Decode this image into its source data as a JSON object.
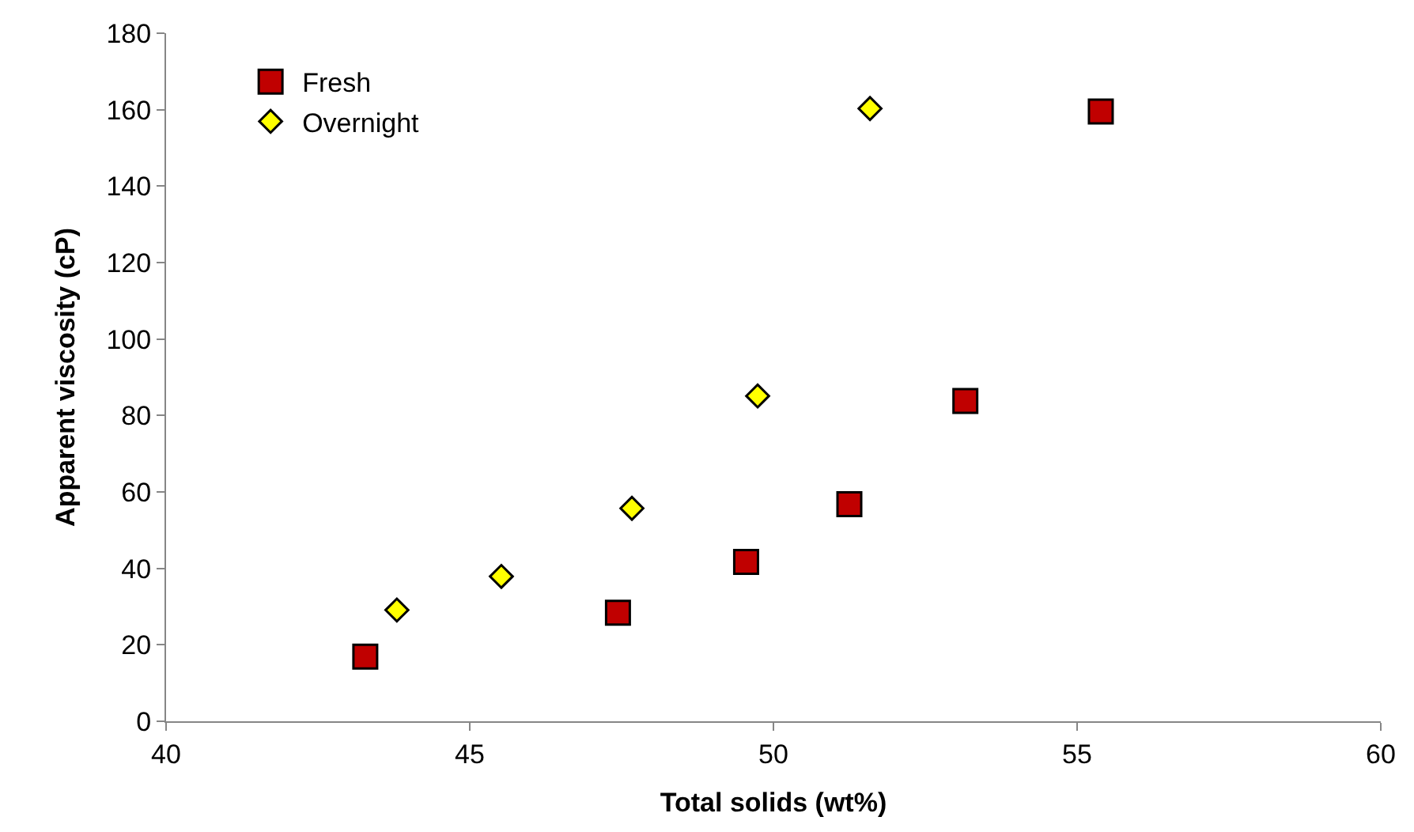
{
  "chart_data": {
    "type": "scatter",
    "xlabel": "Total solids (wt%)",
    "ylabel": "Apparent viscosity (cP)",
    "xlim": [
      40,
      60
    ],
    "xticks": [
      40,
      45,
      50,
      55,
      60
    ],
    "ylim": [
      0,
      180
    ],
    "yticks": [
      0,
      20,
      40,
      60,
      80,
      100,
      120,
      140,
      160,
      180
    ],
    "legend": "top left",
    "series": [
      {
        "name": "Fresh",
        "color": "#c00000",
        "marker": "square",
        "x": [
          43.28,
          47.44,
          49.55,
          51.25,
          53.16,
          55.39
        ],
        "values": [
          16.9,
          28.4,
          41.7,
          56.8,
          83.8,
          159.5
        ]
      },
      {
        "name": "Overnight",
        "color": "#ffff00",
        "marker": "diamond",
        "x": [
          43.8,
          45.52,
          47.67,
          49.74,
          51.59
        ],
        "values": [
          29.1,
          37.9,
          55.7,
          85.1,
          160.3
        ]
      }
    ]
  }
}
